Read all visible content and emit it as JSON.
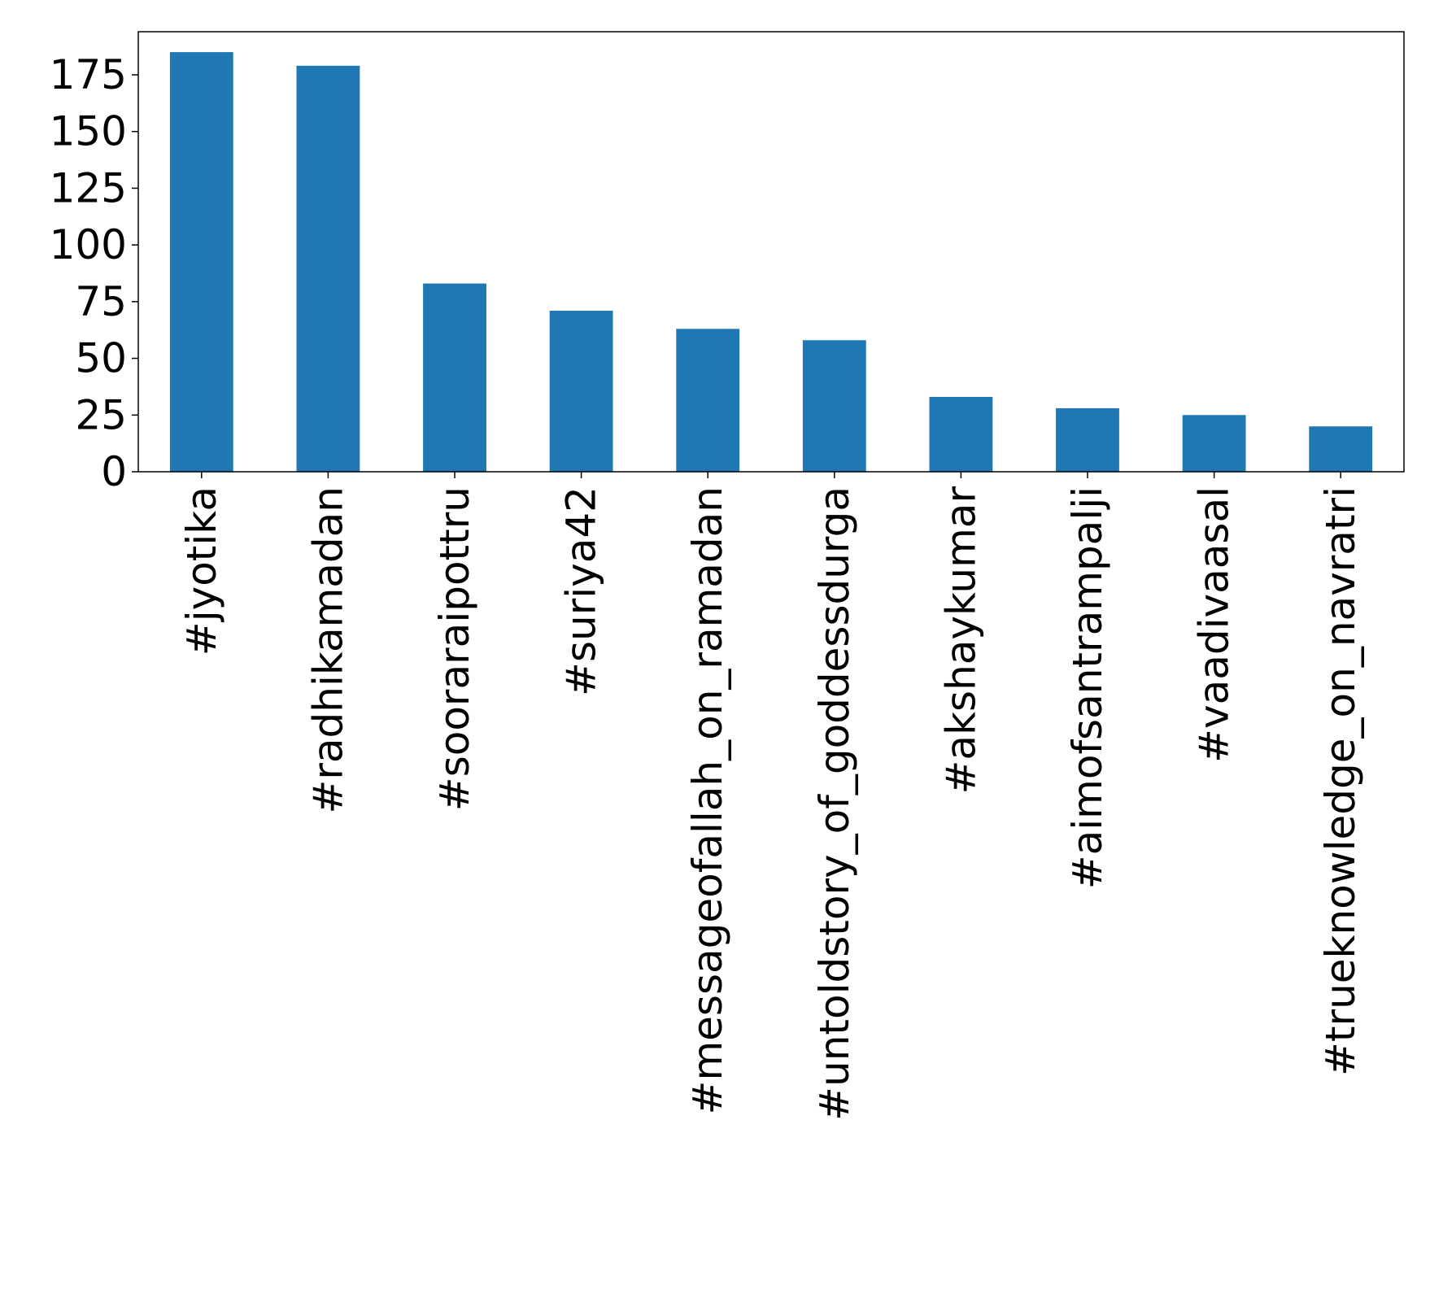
{
  "chart_data": {
    "type": "bar",
    "title": "",
    "xlabel": "",
    "ylabel": "",
    "categories": [
      "#jyotika",
      "#radhikamadan",
      "#sooraraipottru",
      "#suriya42",
      "#messageofallah_on_ramadan",
      "#untoldstory_of_goddessdurga",
      "#akshaykumar",
      "#aimofsantrampalji",
      "#vaadivaasal",
      "#trueknowledge_on_navratri"
    ],
    "values": [
      185,
      179,
      83,
      71,
      63,
      58,
      33,
      28,
      25,
      20
    ],
    "ylim": [
      0,
      194
    ],
    "yticks": [
      0,
      25,
      50,
      75,
      100,
      125,
      150,
      175
    ],
    "bar_color": "#1f77b4",
    "grid": false,
    "legend": "none"
  }
}
